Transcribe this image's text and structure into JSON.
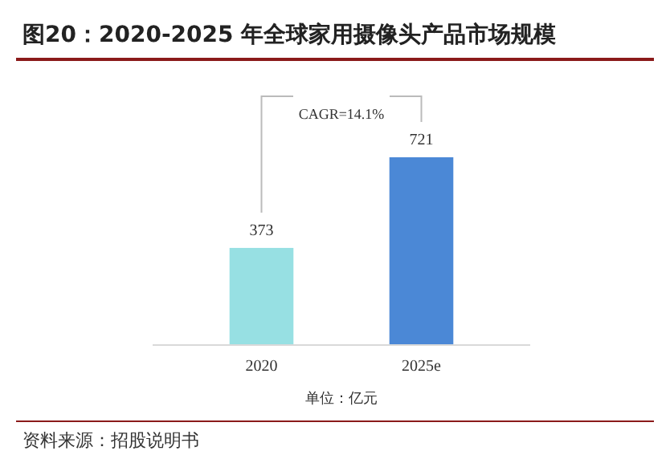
{
  "chart_data": {
    "type": "bar",
    "title": "图20：2020-2025 年全球家用摄像头产品市场规模",
    "categories": [
      "2020",
      "2025e"
    ],
    "values": [
      373,
      721
    ],
    "colors": [
      "#97e0e3",
      "#4b88d6"
    ],
    "data_labels": true,
    "annotations": [
      "CAGR=14.1%",
      "单位：亿元",
      "资料来源：招股说明书"
    ]
  }
}
